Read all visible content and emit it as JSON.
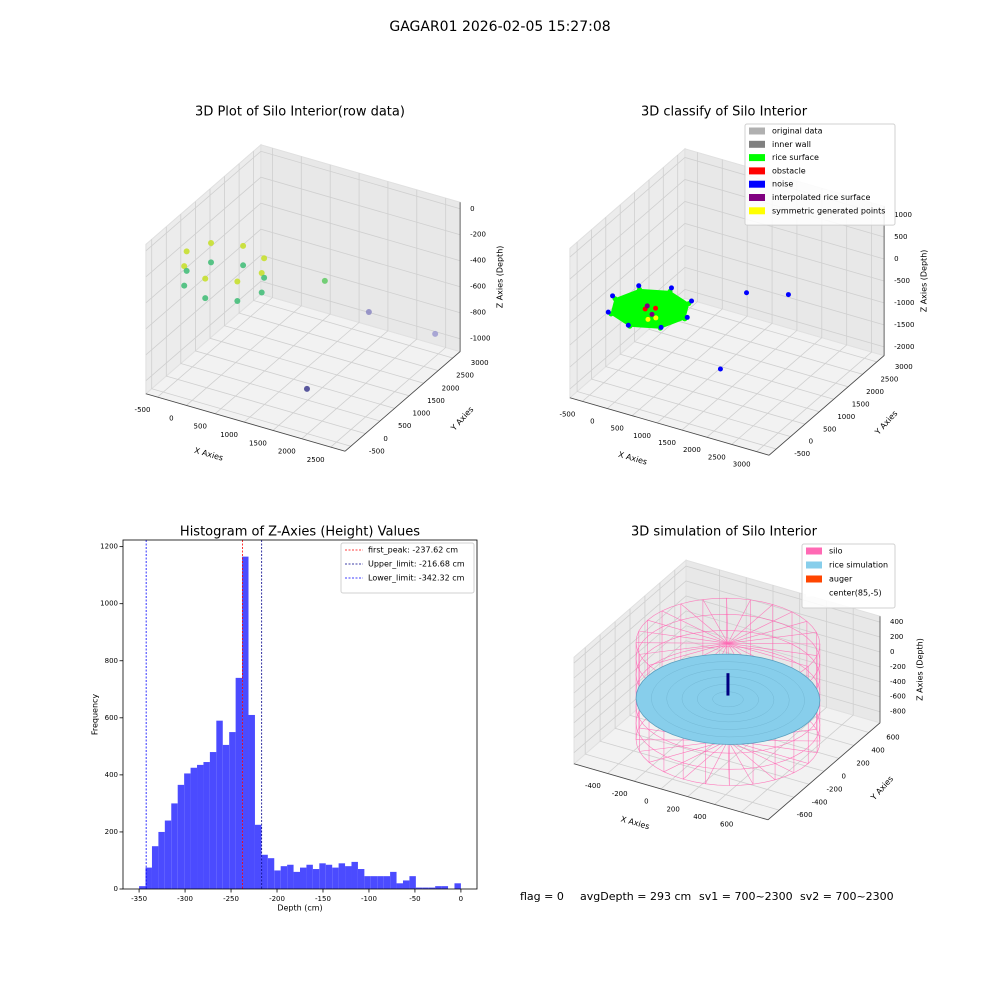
{
  "title": "GAGAR01 2026-02-05 15:27:08",
  "footer": [
    "flag = 0",
    "avgDepth = 293 cm",
    "sv1 = 700~2300",
    "sv2 = 700~2300"
  ],
  "chart_data": [
    {
      "type": "scatter3d",
      "title": "3D Plot of Silo Interior(row data)",
      "xlabel": "X Axies",
      "ylabel": "Y Axies",
      "zlabel": "Z Axies (Depth)",
      "xlim": [
        -700,
        2750
      ],
      "ylim": [
        -700,
        3250
      ],
      "zlim": [
        -1100,
        50
      ],
      "xticks": [
        -500,
        0,
        500,
        1000,
        1500,
        2000,
        2500
      ],
      "yticks": [
        -500,
        0,
        500,
        1000,
        1500,
        2000,
        2500,
        3000
      ],
      "zticks": [
        -1000,
        -800,
        -600,
        -400,
        -200,
        0
      ],
      "points": {
        "x": [
          650,
          460,
          0,
          -460,
          -650,
          -460,
          0,
          460,
          650,
          460,
          0,
          -460,
          -650,
          -460,
          0,
          460,
          1880,
          1750,
          2550,
          1515
        ],
        "y": [
          600,
          1060,
          1250,
          1060,
          600,
          140,
          -50,
          140,
          600,
          1060,
          1250,
          1060,
          600,
          140,
          -50,
          140,
          330,
          2100,
          2790,
          440
        ],
        "z": [
          -250,
          -250,
          -250,
          -250,
          -250,
          -250,
          -250,
          -250,
          -400,
          -400,
          -400,
          -400,
          -400,
          -400,
          -400,
          -400,
          -100,
          -700,
          -900,
          -1000
        ],
        "colors": [
          "#c5df25",
          "#c5df25",
          "#c5df25",
          "#c5df25",
          "#c5df25",
          "#c5df25",
          "#c5df25",
          "#c5df25",
          "#3dbc74",
          "#3dbc74",
          "#3dbc74",
          "#3dbc74",
          "#3dbc74",
          "#3dbc74",
          "#3dbc74",
          "#3dbc74",
          "#5ec962",
          "#8b87c2",
          "#9c9ad0",
          "#3e3c8e"
        ]
      }
    },
    {
      "type": "scatter3d",
      "title": "3D classify of Silo Interior",
      "xlabel": "X Axies",
      "ylabel": "Y Axies",
      "zlabel": "Z Axies (Depth)",
      "xlim": [
        -750,
        3250
      ],
      "ylim": [
        -750,
        3250
      ],
      "zlim": [
        -2200,
        1200
      ],
      "xticks": [
        -500,
        0,
        500,
        1000,
        1500,
        2000,
        2500,
        3000
      ],
      "yticks": [
        -500,
        0,
        500,
        1000,
        1500,
        2000,
        2500,
        3000
      ],
      "zticks": [
        -2000,
        -1500,
        -1000,
        -500,
        0,
        500,
        1000
      ],
      "legend": "upper right",
      "series": [
        {
          "name": "original data",
          "color": "#b0b0b0",
          "x": [],
          "y": [],
          "z": []
        },
        {
          "name": "inner wall",
          "color": "#808080",
          "x": [],
          "y": [],
          "z": []
        },
        {
          "name": "rice surface",
          "color": "#00ff00",
          "area": true,
          "x": [
            1060,
            855,
            360,
            -135,
            -340,
            -135,
            360,
            855
          ],
          "y": [
            110,
            605,
            810,
            605,
            110,
            -385,
            -590,
            -385
          ],
          "z": [
            -300,
            -300,
            -300,
            -300,
            -300,
            -300,
            -300,
            -300
          ]
        },
        {
          "name": "obstacle",
          "color": "#ff0000",
          "x": [
            450,
            300
          ],
          "y": [
            150,
            50
          ],
          "z": [
            -280,
            -290
          ]
        },
        {
          "name": "noise",
          "color": "#0000ff",
          "x": [
            1110,
            890,
            360,
            -170,
            -390,
            -170,
            360,
            890,
            1765,
            2428,
            1170
          ],
          "y": [
            110,
            640,
            860,
            640,
            110,
            -420,
            -640,
            -420,
            1037,
            1346,
            1160
          ],
          "z": [
            -250,
            -250,
            -250,
            -250,
            -250,
            -250,
            -250,
            -250,
            0,
            0,
            -2000
          ]
        },
        {
          "name": "interpolated rice surface",
          "color": "#800080",
          "x": [
            255,
            465
          ],
          "y": [
            200,
            0
          ],
          "z": [
            -320,
            -330
          ]
        },
        {
          "name": "symmetric generated points",
          "color": "#ffff00",
          "x": [
            600,
            500
          ],
          "y": [
            -100,
            -200
          ],
          "z": [
            -310,
            -320
          ]
        }
      ]
    },
    {
      "type": "histogram",
      "title": "Histogram of Z-Axies (Height) Values",
      "xlabel": "Depth (cm)",
      "ylabel": "Frequency",
      "color": "#4b4bff",
      "bins": [
        -350,
        -343,
        -336,
        -329,
        -322,
        -315,
        -308,
        -301,
        -294,
        -287,
        -280,
        -273,
        -266,
        -259,
        -252,
        -245,
        -238,
        -231,
        -224,
        -217,
        -210,
        -203,
        -196,
        -189,
        -182,
        -175,
        -168,
        -161,
        -154,
        -147,
        -140,
        -133,
        -126,
        -119,
        -112,
        -105,
        -98,
        -91,
        -84,
        -77,
        -70,
        -63,
        -56,
        -49,
        -42,
        -35,
        -28,
        -21,
        -14,
        -7,
        0
      ],
      "counts": [
        10,
        75,
        150,
        200,
        240,
        300,
        365,
        405,
        425,
        435,
        445,
        480,
        590,
        505,
        550,
        740,
        1165,
        610,
        225,
        120,
        108,
        65,
        80,
        85,
        60,
        75,
        85,
        70,
        90,
        85,
        75,
        90,
        80,
        95,
        70,
        45,
        45,
        45,
        45,
        60,
        20,
        30,
        45,
        5,
        5,
        5,
        10,
        10,
        0,
        20
      ],
      "xlim": [
        -367.5,
        17.5
      ],
      "ylim": [
        0,
        1223.25
      ],
      "xticks": [
        -350,
        -300,
        -250,
        -200,
        -150,
        -100,
        -50,
        0
      ],
      "yticks": [
        0,
        200,
        400,
        600,
        800,
        1000,
        1200
      ],
      "legend": "upper right",
      "lines": [
        {
          "label": "first_peak: -237.62 cm",
          "value": -237.62,
          "color": "#ff0000"
        },
        {
          "label": "Upper_limit: -216.68 cm",
          "value": -216.68,
          "color": "#00008b"
        },
        {
          "label": "Lower_limit: -342.32 cm",
          "value": -342.32,
          "color": "#0000ff"
        }
      ]
    },
    {
      "type": "silo3d",
      "title": "3D simulation of Silo Interior",
      "xlabel": "X Axies",
      "ylabel": "Y Axies",
      "zlabel": "Z Axies (Depth)",
      "xlim": [
        -650,
        800
      ],
      "ylim": [
        -750,
        750
      ],
      "zlim": [
        -950,
        480
      ],
      "xticks": [
        -400,
        -200,
        0,
        200,
        400,
        600
      ],
      "yticks": [
        -600,
        -400,
        -200,
        0,
        200,
        400,
        600
      ],
      "zticks": [
        -800,
        -600,
        -400,
        -200,
        0,
        200,
        400
      ],
      "legend": "upper right",
      "legend_entries": [
        {
          "name": "silo",
          "color": "#ff69b4"
        },
        {
          "name": "rice simulation",
          "color": "#87ceeb"
        },
        {
          "name": "auger",
          "color": "#ff4500"
        },
        {
          "name": "center(85,-5)",
          "color": "#ffffff"
        }
      ],
      "silo": {
        "center": [
          85,
          -5
        ],
        "radius": 600,
        "zlim": [
          -900,
          400
        ],
        "color": "#ff69b4"
      },
      "rice": {
        "z": -350,
        "radius": 600,
        "color": "#87ceeb"
      },
      "auger": {
        "z": [
          -300,
          0
        ],
        "color": "#000080"
      }
    }
  ]
}
